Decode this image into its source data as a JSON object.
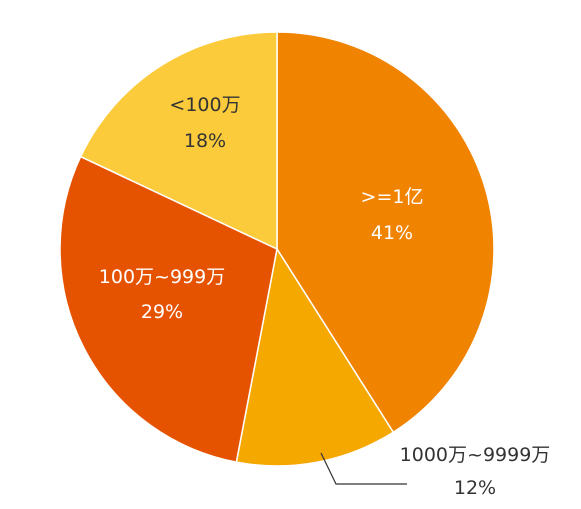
{
  "chart_data": {
    "type": "pie",
    "title": "",
    "slices": [
      {
        "label": ">=1亿",
        "value": 41,
        "percent_label": "41%",
        "color": "#F08300"
      },
      {
        "label": "1000万~9999万",
        "value": 12,
        "percent_label": "12%",
        "color": "#F5A800"
      },
      {
        "label": "100万~999万",
        "value": 29,
        "percent_label": "29%",
        "color": "#E65300"
      },
      {
        "label": "<100万",
        "value": 18,
        "percent_label": "18%",
        "color": "#FCCB3C"
      }
    ],
    "start_angle": "12 o'clock",
    "direction": "clockwise"
  }
}
